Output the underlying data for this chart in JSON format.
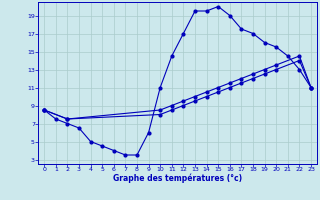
{
  "background_color": "#cce8ec",
  "grid_color": "#aacccc",
  "line_color": "#0000bb",
  "xlabel": "Graphe des températures (°c)",
  "xlabel_color": "#0000bb",
  "xlim": [
    -0.5,
    23.5
  ],
  "ylim": [
    2.5,
    20.5
  ],
  "yticks": [
    3,
    5,
    7,
    9,
    11,
    13,
    15,
    17,
    19
  ],
  "xticks": [
    0,
    1,
    2,
    3,
    4,
    5,
    6,
    7,
    8,
    9,
    10,
    11,
    12,
    13,
    14,
    15,
    16,
    17,
    18,
    19,
    20,
    21,
    22,
    23
  ],
  "line1_x": [
    0,
    1,
    2,
    3,
    4,
    5,
    6,
    7,
    8,
    9,
    10,
    11,
    12,
    13,
    14,
    15,
    16,
    17,
    18,
    19,
    20,
    21,
    22,
    23
  ],
  "line1_y": [
    8.5,
    7.5,
    7.0,
    6.5,
    5.0,
    4.5,
    4.0,
    3.5,
    3.5,
    6.0,
    11.0,
    14.5,
    17.0,
    19.5,
    19.5,
    20.0,
    19.0,
    17.5,
    17.0,
    16.0,
    15.5,
    14.5,
    13.0,
    11.0
  ],
  "line2_x": [
    0,
    2,
    10,
    11,
    12,
    13,
    14,
    15,
    16,
    17,
    18,
    19,
    20,
    22,
    23
  ],
  "line2_y": [
    8.5,
    7.5,
    8.5,
    9.0,
    9.5,
    10.0,
    10.5,
    11.0,
    11.5,
    12.0,
    12.5,
    13.0,
    13.5,
    14.5,
    11.0
  ],
  "line3_x": [
    0,
    2,
    10,
    11,
    12,
    13,
    14,
    15,
    16,
    17,
    18,
    19,
    20,
    22,
    23
  ],
  "line3_y": [
    8.5,
    7.5,
    8.0,
    8.5,
    9.0,
    9.5,
    10.0,
    10.5,
    11.0,
    11.5,
    12.0,
    12.5,
    13.0,
    14.0,
    11.0
  ]
}
